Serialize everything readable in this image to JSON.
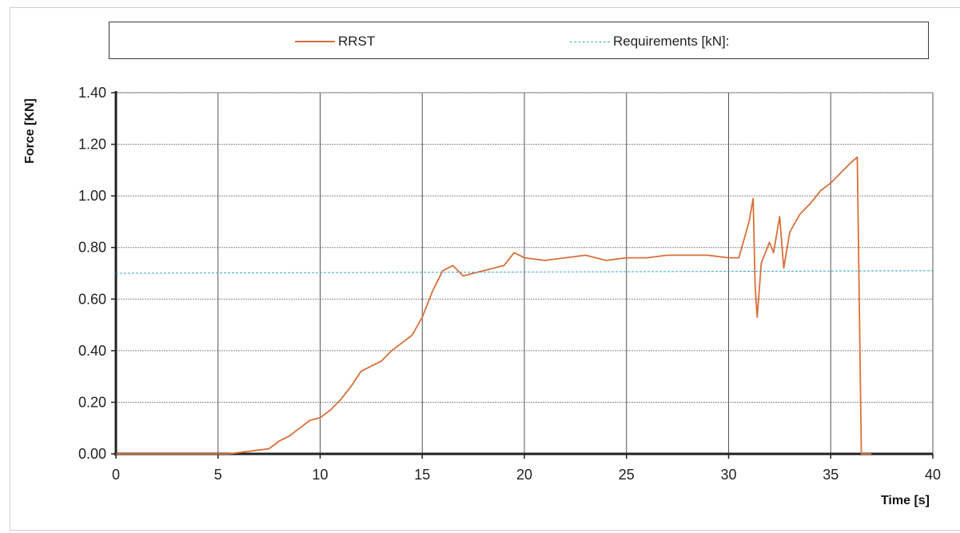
{
  "chart_data": {
    "type": "line",
    "xlabel": "Time [s]",
    "ylabel": "Force [KN]",
    "xlim": [
      0,
      40
    ],
    "ylim": [
      0,
      1.4
    ],
    "x_ticks": [
      "0",
      "5",
      "10",
      "15",
      "20",
      "25",
      "30",
      "35",
      "40"
    ],
    "y_ticks": [
      "0.00",
      "0.20",
      "0.40",
      "0.60",
      "0.80",
      "1.00",
      "1.20",
      "1.40"
    ],
    "grid": true,
    "legend_position": "top",
    "series": [
      {
        "name": "RRST",
        "color": "#d9703a",
        "style": "solid",
        "points": [
          [
            0,
            0.0
          ],
          [
            5.5,
            0.0
          ],
          [
            6.5,
            0.01
          ],
          [
            7.5,
            0.02
          ],
          [
            8.0,
            0.05
          ],
          [
            8.5,
            0.07
          ],
          [
            9.0,
            0.1
          ],
          [
            9.5,
            0.13
          ],
          [
            10.0,
            0.14
          ],
          [
            10.5,
            0.17
          ],
          [
            11.0,
            0.21
          ],
          [
            11.5,
            0.26
          ],
          [
            12.0,
            0.32
          ],
          [
            12.5,
            0.34
          ],
          [
            13.0,
            0.36
          ],
          [
            13.5,
            0.4
          ],
          [
            14.0,
            0.43
          ],
          [
            14.5,
            0.46
          ],
          [
            15.0,
            0.53
          ],
          [
            15.5,
            0.63
          ],
          [
            16.0,
            0.71
          ],
          [
            16.5,
            0.73
          ],
          [
            17.0,
            0.69
          ],
          [
            17.5,
            0.7
          ],
          [
            18.0,
            0.71
          ],
          [
            19.0,
            0.73
          ],
          [
            19.5,
            0.78
          ],
          [
            20.0,
            0.76
          ],
          [
            21.0,
            0.75
          ],
          [
            22.0,
            0.76
          ],
          [
            23.0,
            0.77
          ],
          [
            24.0,
            0.75
          ],
          [
            25.0,
            0.76
          ],
          [
            26.0,
            0.76
          ],
          [
            27.0,
            0.77
          ],
          [
            28.0,
            0.77
          ],
          [
            29.0,
            0.77
          ],
          [
            30.0,
            0.76
          ],
          [
            30.5,
            0.76
          ],
          [
            31.0,
            0.9
          ],
          [
            31.2,
            0.99
          ],
          [
            31.3,
            0.65
          ],
          [
            31.4,
            0.53
          ],
          [
            31.6,
            0.74
          ],
          [
            32.0,
            0.82
          ],
          [
            32.2,
            0.78
          ],
          [
            32.5,
            0.92
          ],
          [
            32.7,
            0.72
          ],
          [
            33.0,
            0.86
          ],
          [
            33.5,
            0.93
          ],
          [
            34.0,
            0.97
          ],
          [
            34.5,
            1.02
          ],
          [
            35.0,
            1.05
          ],
          [
            35.5,
            1.09
          ],
          [
            36.0,
            1.13
          ],
          [
            36.3,
            1.15
          ],
          [
            36.5,
            0.0
          ],
          [
            37.0,
            0.0
          ]
        ]
      },
      {
        "name": "Requirements [kN]:",
        "color": "#3aa6c4",
        "style": "dashed",
        "points": [
          [
            0,
            0.7
          ],
          [
            40,
            0.71
          ]
        ]
      }
    ]
  }
}
